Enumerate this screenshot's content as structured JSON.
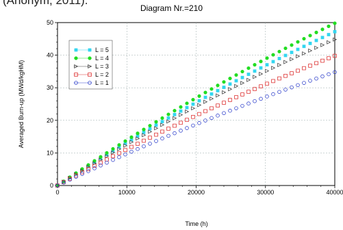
{
  "caption_fragment": "(Anonym, 2011).",
  "chart_data": {
    "type": "scatter",
    "title": "Diagram Nr.=210",
    "xlabel": "Time (h)",
    "ylabel": "Averaged Burn-up  (MWd/kgHM)",
    "xlim": [
      0,
      40000
    ],
    "ylim": [
      0,
      50
    ],
    "x_ticks": [
      "0",
      "10000",
      "20000",
      "30000",
      "40000"
    ],
    "y_ticks": [
      "0",
      "10",
      "20",
      "30",
      "40",
      "50"
    ],
    "grid": true,
    "legend_position": "top-left",
    "series": [
      {
        "name": "L = 5",
        "color": "#33d6f0",
        "marker": "square-filled",
        "x_start": 0,
        "x_end": 40000,
        "y_start": 0,
        "y_end": 47.2,
        "curvature": 0.16
      },
      {
        "name": "L = 4",
        "color": "#22dd22",
        "marker": "circle-filled",
        "x_start": 0,
        "x_end": 40000,
        "y_start": 0,
        "y_end": 49.8,
        "curvature": 0.16
      },
      {
        "name": "L = 3",
        "color": "#444444",
        "marker": "triangle-open",
        "x_start": 0,
        "x_end": 40000,
        "y_start": 0,
        "y_end": 44.8,
        "curvature": 0.16
      },
      {
        "name": "L = 2",
        "color": "#dd3333",
        "marker": "square-open",
        "x_start": 0,
        "x_end": 40000,
        "y_start": 0,
        "y_end": 39.8,
        "curvature": 0.16
      },
      {
        "name": "L = 1",
        "color": "#3344cc",
        "marker": "circle-open",
        "x_start": 0,
        "x_end": 40000,
        "y_start": 0,
        "y_end": 34.8,
        "curvature": 0.16
      }
    ],
    "points_per_series": 45
  }
}
